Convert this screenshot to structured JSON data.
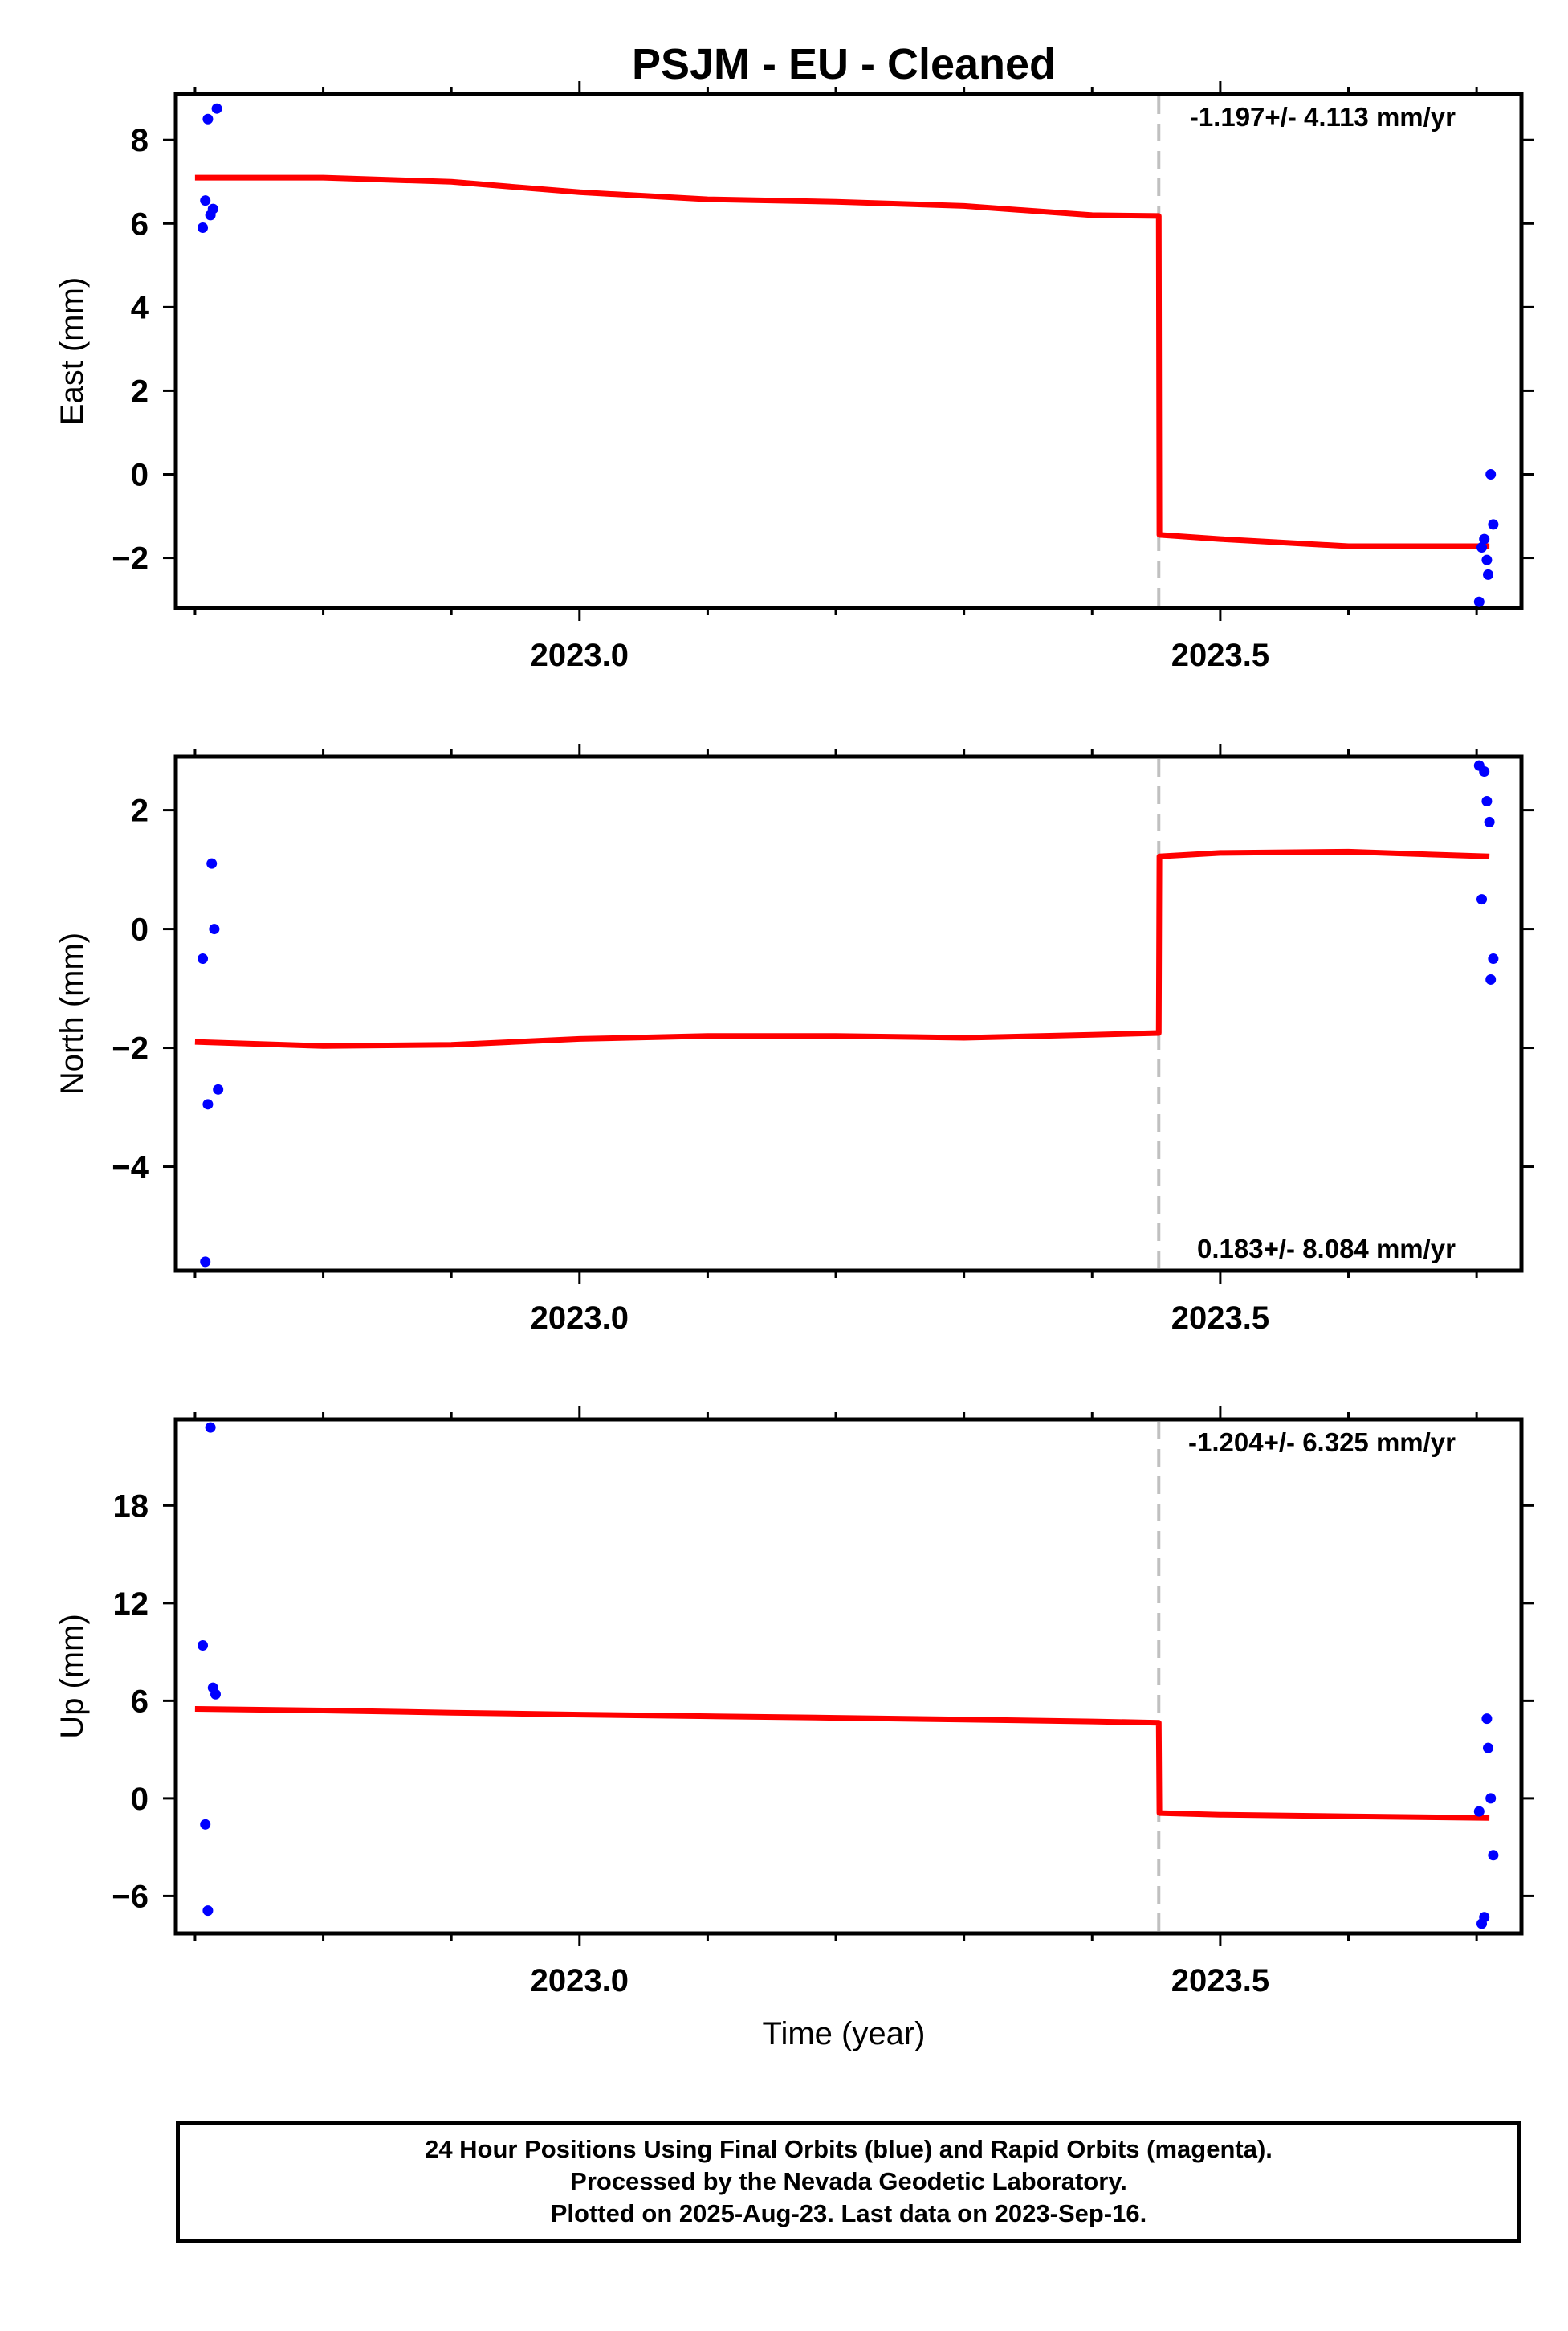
{
  "title": "PSJM  - EU - Cleaned",
  "xlabel": "Time (year)",
  "colors": {
    "data_points": "#0000ff",
    "model_line": "#ff0000",
    "break_line": "#c0c0c0",
    "frame": "#000000"
  },
  "footer": {
    "line1": "24 Hour Positions Using Final Orbits (blue) and Rapid Orbits (magenta).",
    "line2": "Processed by the Nevada Geodetic Laboratory.",
    "line3": "Plotted on 2025-Aug-23. Last data on 2023-Sep-16."
  },
  "chart_data": [
    {
      "type": "scatter",
      "ylabel": "East (mm)",
      "xlim": [
        2022.685,
        2023.735
      ],
      "ylim": [
        -3.2,
        9.1
      ],
      "yticks": [
        -2,
        0,
        2,
        4,
        6,
        8
      ],
      "ytick_labels": [
        "−2",
        "0",
        "2",
        "4",
        "6",
        "8"
      ],
      "xticks": [
        2023.0,
        2023.5
      ],
      "xtick_labels": [
        "2023.0",
        "2023.5"
      ],
      "minor_xticks": [
        2022.7,
        2022.8,
        2022.9,
        2023.1,
        2023.2,
        2023.3,
        2023.4,
        2023.6,
        2023.7
      ],
      "rate_label": "-1.197+/- 4.113 mm/yr",
      "rate_position": "top-right",
      "break_x": 2023.452,
      "points": {
        "x": [
          2022.706,
          2022.708,
          2022.71,
          2022.712,
          2022.714,
          2022.717,
          2023.702,
          2023.704,
          2023.706,
          2023.708,
          2023.709,
          2023.711,
          2023.713
        ],
        "y": [
          5.9,
          6.55,
          8.5,
          6.2,
          6.35,
          8.75,
          -3.05,
          -1.75,
          -1.55,
          -2.05,
          -2.4,
          0.0,
          -1.2
        ]
      },
      "model": {
        "x": [
          2022.7,
          2022.8,
          2022.9,
          2023.0,
          2023.1,
          2023.2,
          2023.3,
          2023.4,
          2023.452,
          2023.4525,
          2023.5,
          2023.6,
          2023.71
        ],
        "y": [
          7.1,
          7.1,
          7.0,
          6.75,
          6.58,
          6.52,
          6.42,
          6.2,
          6.18,
          -1.45,
          -1.55,
          -1.72,
          -1.72
        ]
      }
    },
    {
      "type": "scatter",
      "ylabel": "North (mm)",
      "xlim": [
        2022.685,
        2023.735
      ],
      "ylim": [
        -5.75,
        2.9
      ],
      "yticks": [
        -4,
        -2,
        0,
        2
      ],
      "ytick_labels": [
        "−4",
        "−2",
        "0",
        "2"
      ],
      "xticks": [
        2023.0,
        2023.5
      ],
      "xtick_labels": [
        "2023.0",
        "2023.5"
      ],
      "minor_xticks": [
        2022.7,
        2022.8,
        2022.9,
        2023.1,
        2023.2,
        2023.3,
        2023.4,
        2023.6,
        2023.7
      ],
      "rate_label": "0.183+/- 8.084 mm/yr",
      "rate_position": "bottom-right",
      "break_x": 2023.452,
      "points": {
        "x": [
          2022.706,
          2022.708,
          2022.71,
          2022.713,
          2022.715,
          2022.718,
          2023.702,
          2023.704,
          2023.706,
          2023.708,
          2023.71,
          2023.711,
          2023.713
        ],
        "y": [
          -0.5,
          -5.6,
          -2.95,
          1.1,
          0.0,
          -2.7,
          2.75,
          0.5,
          2.65,
          2.15,
          1.8,
          -0.85,
          -0.5
        ]
      },
      "model": {
        "x": [
          2022.7,
          2022.8,
          2022.9,
          2023.0,
          2023.1,
          2023.2,
          2023.3,
          2023.4,
          2023.452,
          2023.4525,
          2023.5,
          2023.6,
          2023.71
        ],
        "y": [
          -1.9,
          -1.97,
          -1.95,
          -1.85,
          -1.8,
          -1.8,
          -1.83,
          -1.78,
          -1.75,
          1.22,
          1.28,
          1.3,
          1.22
        ]
      }
    },
    {
      "type": "scatter",
      "ylabel": "Up (mm)",
      "xlim": [
        2022.685,
        2023.735
      ],
      "ylim": [
        -8.3,
        23.3
      ],
      "yticks": [
        -6,
        0,
        6,
        12,
        18
      ],
      "ytick_labels": [
        "−6",
        "0",
        "6",
        "12",
        "18"
      ],
      "xticks": [
        2023.0,
        2023.5
      ],
      "xtick_labels": [
        "2023.0",
        "2023.5"
      ],
      "minor_xticks": [
        2022.7,
        2022.8,
        2022.9,
        2023.1,
        2023.2,
        2023.3,
        2023.4,
        2023.6,
        2023.7
      ],
      "rate_label": "-1.204+/- 6.325 mm/yr",
      "rate_position": "top-right",
      "break_x": 2023.452,
      "points": {
        "x": [
          2022.706,
          2022.708,
          2022.71,
          2022.712,
          2022.714,
          2022.716,
          2023.702,
          2023.704,
          2023.706,
          2023.708,
          2023.709,
          2023.711,
          2023.713
        ],
        "y": [
          9.4,
          -1.6,
          -6.9,
          22.8,
          6.8,
          6.4,
          -0.8,
          -7.7,
          -7.3,
          4.9,
          3.1,
          0.0,
          -3.5
        ]
      },
      "model": {
        "x": [
          2022.7,
          2022.8,
          2022.9,
          2023.0,
          2023.1,
          2023.2,
          2023.3,
          2023.4,
          2023.452,
          2023.4525,
          2023.5,
          2023.6,
          2023.71
        ],
        "y": [
          5.5,
          5.4,
          5.27,
          5.15,
          5.05,
          4.95,
          4.85,
          4.73,
          4.65,
          -0.9,
          -1.0,
          -1.1,
          -1.2
        ]
      }
    }
  ]
}
